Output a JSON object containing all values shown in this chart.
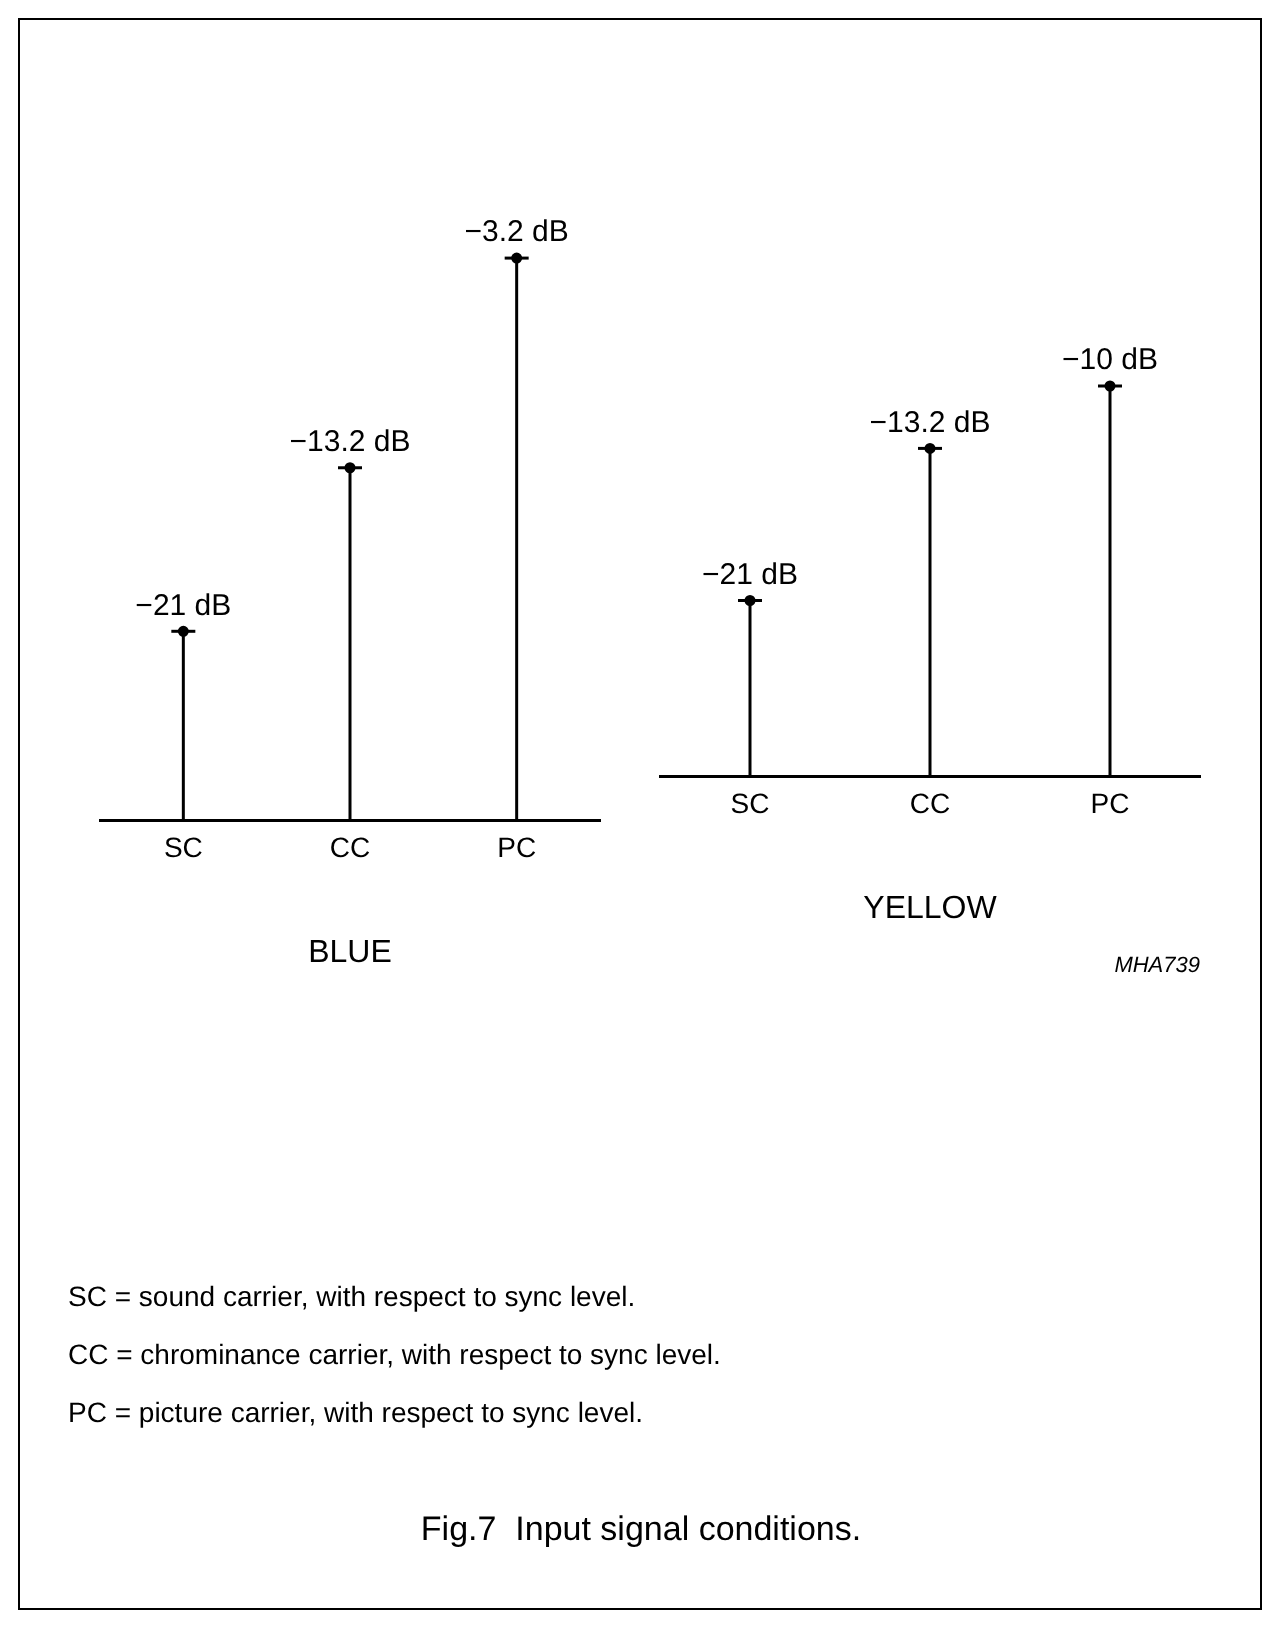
{
  "chart_data": [
    {
      "type": "lollipop",
      "categories": [
        "SC",
        "CC",
        "PC"
      ],
      "values": [
        -21,
        -13.2,
        -3.2
      ],
      "value_labels": [
        "−21 dB",
        "−13.2 dB",
        "−3.2 dB"
      ],
      "color": "#000000",
      "xlabel": "BLUE",
      "tick_labels": "x"
    },
    {
      "type": "lollipop",
      "categories": [
        "SC",
        "CC",
        "PC"
      ],
      "values": [
        -21,
        -13.2,
        -10
      ],
      "value_labels": [
        "−21 dB",
        "−13.2 dB",
        "−10 dB"
      ],
      "color": "#000000",
      "xlabel": "YELLOW",
      "annotations": [
        "MHA739"
      ],
      "tick_labels": "x"
    },
    {
      "type": "other",
      "title": "Fig.7  Input signal conditions.",
      "annotations": [
        "SC = sound carrier, with respect to sync level.",
        "CC = chrominance carrier, with respect to sync level.",
        "PC = picture carrier, with respect to sync level."
      ]
    }
  ]
}
